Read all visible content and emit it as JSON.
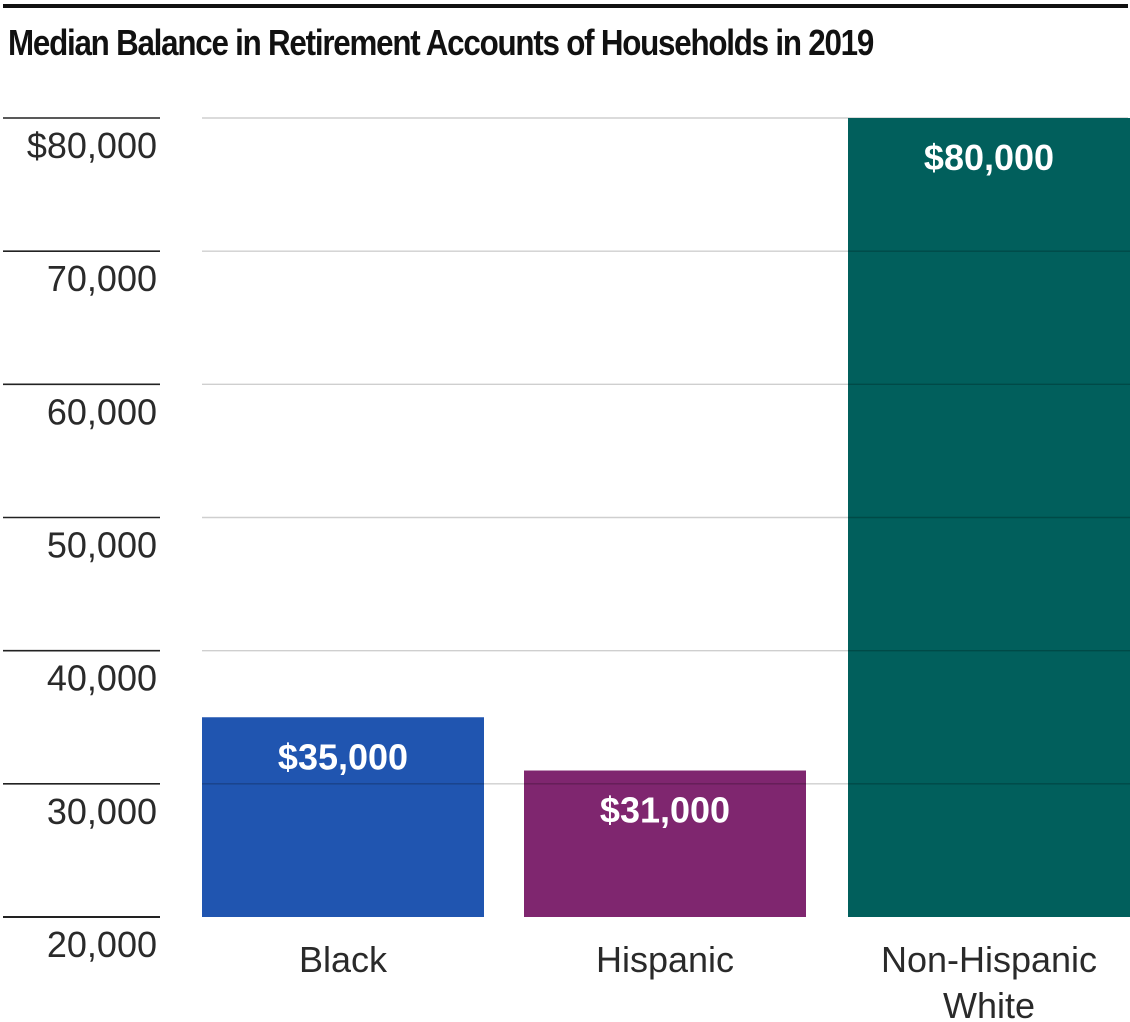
{
  "chart_data": {
    "type": "bar",
    "title": "Median Balance in Retirement Accounts of Households in 2019",
    "xlabel": "",
    "ylabel": "",
    "categories": [
      [
        "Black"
      ],
      [
        "Hispanic"
      ],
      [
        "Non-Hispanic",
        "White"
      ]
    ],
    "values": [
      35000,
      31000,
      80000
    ],
    "data_labels": [
      "$35,000",
      "$31,000",
      "$80,000"
    ],
    "colors": [
      "#2055B0",
      "#7F266F",
      "#015F5C"
    ],
    "ylim": [
      20000,
      80000
    ],
    "yticks": [
      20000,
      30000,
      40000,
      50000,
      60000,
      70000,
      80000
    ],
    "ytick_labels": [
      "20,000",
      "30,000",
      "40,000",
      "50,000",
      "60,000",
      "70,000",
      "$80,000"
    ],
    "grid": true,
    "legend": "none"
  }
}
